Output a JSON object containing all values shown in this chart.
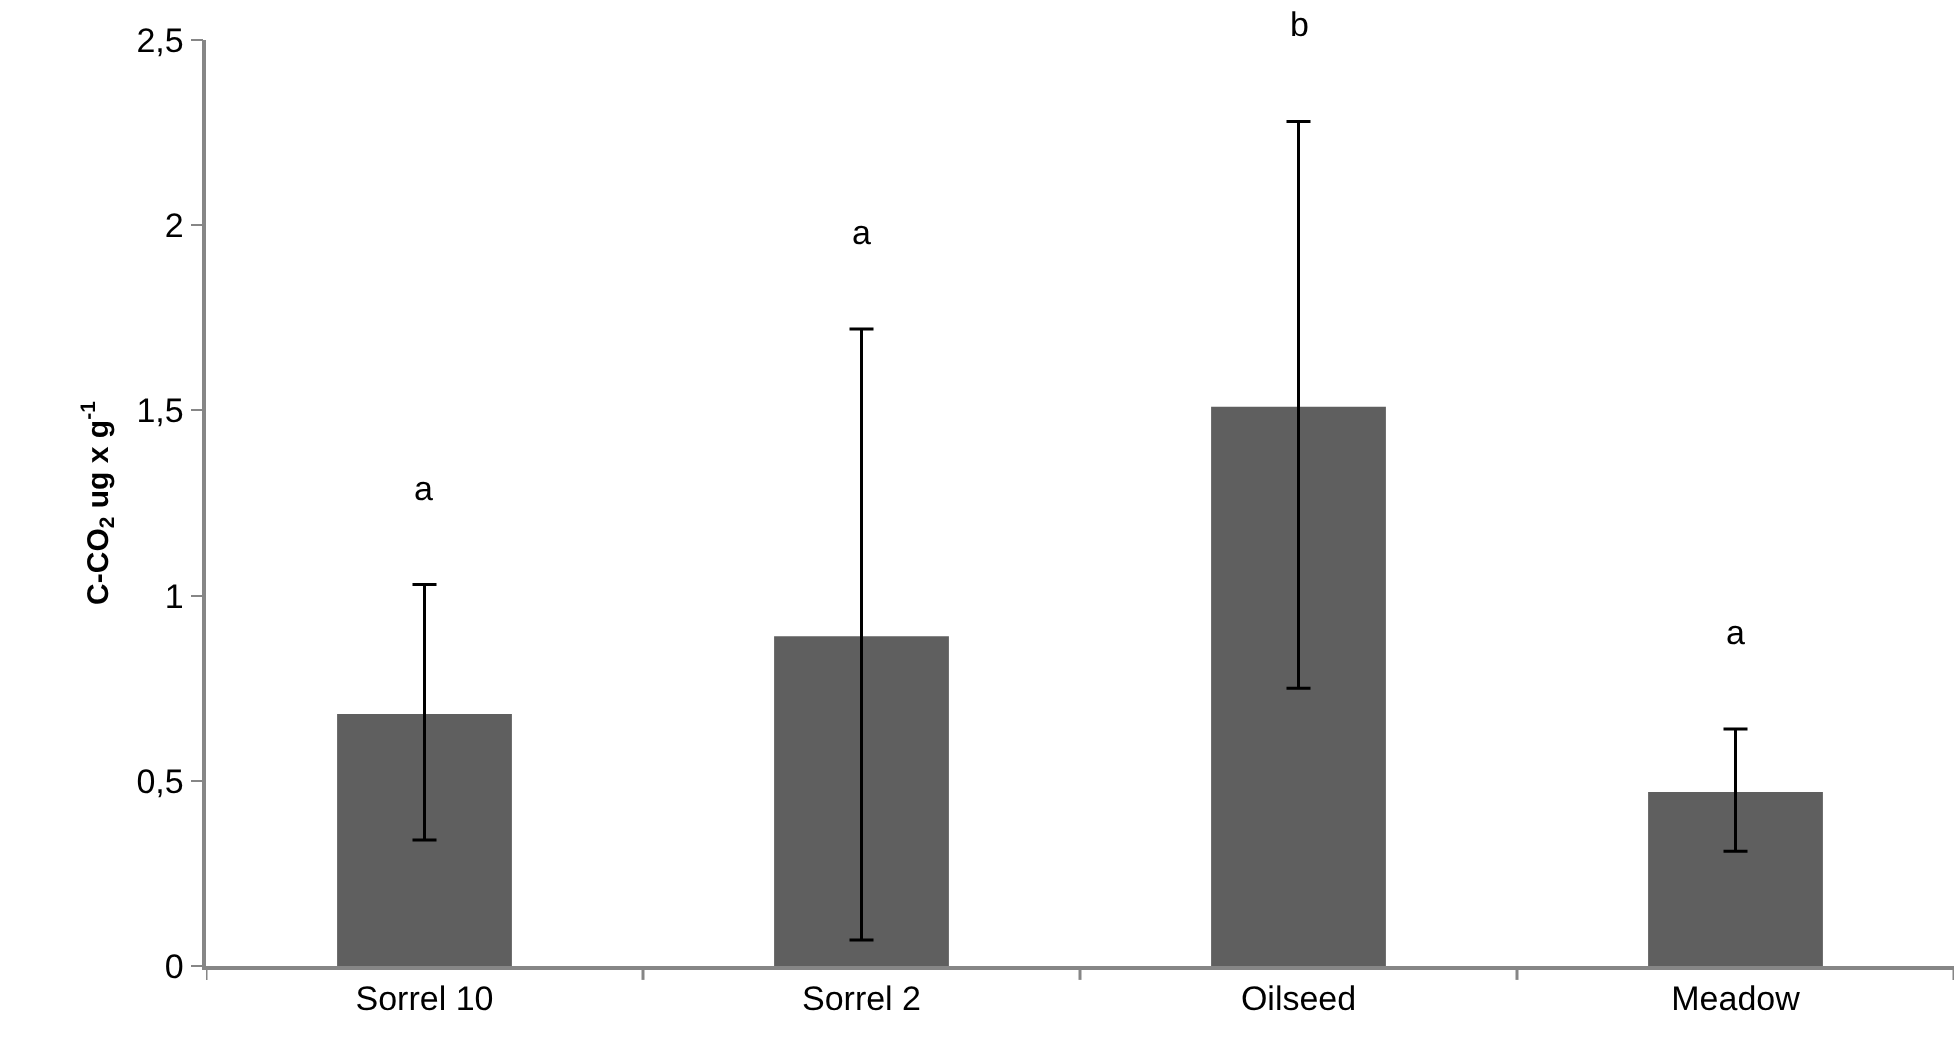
{
  "chart_data": {
    "type": "bar",
    "categories": [
      "Sorrel 10",
      "Sorrel 2",
      "Oilseed",
      "Meadow"
    ],
    "values": [
      0.68,
      0.89,
      1.51,
      0.47
    ],
    "errors": [
      [
        0.34,
        1.03
      ],
      [
        0.07,
        1.72
      ],
      [
        0.75,
        2.28
      ],
      [
        0.31,
        0.64
      ]
    ],
    "color": "#5f5f5f",
    "ylabel": "C-CO$_{2}$ ug x g$^{-1}$",
    "ylim": [
      0,
      2.5
    ],
    "yticks": [
      0,
      {
        "value": 0.5,
        "label": "0,5"
      },
      1,
      {
        "value": 1.5,
        "label": "1,5"
      },
      2,
      {
        "value": 2.5,
        "label": "2,5"
      }
    ],
    "annotations": [
      "a",
      "a",
      "b",
      "a"
    ]
  }
}
